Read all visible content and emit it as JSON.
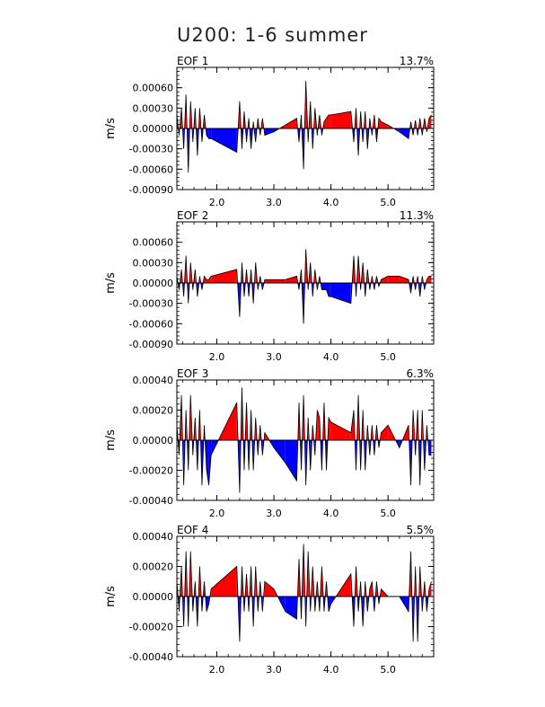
{
  "page_title": "U200: 1-6 summer",
  "colors": {
    "positive": "#ff0000",
    "negative": "#0000ff",
    "line": "#000000"
  },
  "chart_data": [
    {
      "type": "area",
      "title": "EOF 1",
      "variance": "13.7%",
      "ylabel": "m/s",
      "ylim": [
        -0.0009,
        0.0009
      ],
      "yticks": [
        0.0006,
        0.0003,
        0.0,
        -0.0003,
        -0.0006,
        -0.0009
      ],
      "ytick_labels": [
        "0.00060",
        "0.00030",
        "0.00000",
        "-0.00030",
        "-0.00060",
        "-0.00090"
      ],
      "xlim": [
        1.3,
        5.8
      ],
      "xticks": [
        2.0,
        3.0,
        4.0,
        5.0
      ],
      "xtick_labels": [
        "2.0",
        "3.0",
        "4.0",
        "5.0"
      ],
      "x": [
        1.3,
        1.34,
        1.38,
        1.42,
        1.46,
        1.5,
        1.54,
        1.58,
        1.62,
        1.66,
        1.7,
        1.74,
        1.78,
        1.82,
        1.86,
        1.9,
        2.35,
        2.4,
        2.44,
        2.48,
        2.52,
        2.56,
        2.6,
        2.64,
        2.68,
        2.72,
        2.76,
        2.8,
        2.84,
        3.0,
        3.2,
        3.4,
        3.44,
        3.48,
        3.52,
        3.56,
        3.6,
        3.64,
        3.68,
        3.72,
        3.76,
        3.8,
        3.84,
        3.88,
        3.92,
        3.96,
        4.0,
        4.35,
        4.4,
        4.44,
        4.48,
        4.52,
        4.56,
        4.6,
        4.64,
        4.68,
        4.72,
        4.76,
        4.8,
        4.84,
        4.88,
        5.0,
        5.2,
        5.36,
        5.4,
        5.44,
        5.48,
        5.52,
        5.56,
        5.6,
        5.64,
        5.68,
        5.72,
        5.76
      ],
      "values": [
        0.0002,
        -0.0001,
        0.0003,
        -0.0003,
        0.0005,
        -0.00065,
        0.0004,
        -0.0002,
        0.0003,
        -0.0004,
        0.0003,
        -0.0002,
        0.0002,
        -0.0001,
        -0.00015,
        -0.00015,
        -0.00035,
        0.0004,
        -0.0003,
        0.00025,
        -0.0002,
        0.00015,
        -0.0003,
        0.0001,
        -0.0002,
        0.00015,
        -0.0001,
        0.00015,
        -0.0001,
        -5e-05,
        5e-05,
        0.00015,
        -0.0002,
        0.0002,
        -0.0006,
        0.0007,
        -0.0002,
        0.0004,
        -0.0003,
        0.0003,
        -0.0001,
        0.0002,
        -0.0001,
        0.0001,
        0.00015,
        0.0002,
        0.0002,
        0.00025,
        -0.0002,
        0.0003,
        -0.0004,
        0.00025,
        -0.0002,
        0.00025,
        -0.0003,
        0.00015,
        -0.0001,
        0.0002,
        -0.0002,
        0.00015,
        0.0001,
        5e-05,
        -5e-05,
        -0.00015,
        0.0001,
        -0.0001,
        0.00012,
        -0.0001,
        0.00015,
        -0.0001,
        0.00015,
        -5e-05,
        0.00015,
        0.0002
      ]
    },
    {
      "type": "area",
      "title": "EOF 2",
      "variance": "11.3%",
      "ylabel": "m/s",
      "ylim": [
        -0.0009,
        0.0009
      ],
      "yticks": [
        0.0006,
        0.0003,
        0.0,
        -0.0003,
        -0.0006,
        -0.0009
      ],
      "ytick_labels": [
        "0.00060",
        "0.00030",
        "0.00000",
        "-0.00030",
        "-0.00060",
        "-0.00090"
      ],
      "xlim": [
        1.3,
        5.8
      ],
      "xticks": [
        2.0,
        3.0,
        4.0,
        5.0
      ],
      "xtick_labels": [
        "2.0",
        "3.0",
        "4.0",
        "5.0"
      ],
      "x": [
        1.3,
        1.34,
        1.38,
        1.42,
        1.46,
        1.5,
        1.54,
        1.58,
        1.62,
        1.66,
        1.7,
        1.74,
        1.78,
        1.82,
        1.86,
        1.9,
        2.35,
        2.4,
        2.44,
        2.48,
        2.52,
        2.56,
        2.6,
        2.64,
        2.68,
        2.72,
        2.76,
        2.8,
        2.84,
        3.0,
        3.2,
        3.4,
        3.44,
        3.48,
        3.52,
        3.56,
        3.6,
        3.64,
        3.68,
        3.72,
        3.76,
        3.8,
        3.84,
        3.88,
        3.92,
        3.96,
        4.0,
        4.35,
        4.4,
        4.44,
        4.48,
        4.52,
        4.56,
        4.6,
        4.64,
        4.68,
        4.72,
        4.76,
        4.8,
        4.84,
        4.88,
        5.0,
        5.2,
        5.36,
        5.4,
        5.44,
        5.48,
        5.52,
        5.56,
        5.6,
        5.64,
        5.68,
        5.72,
        5.76
      ],
      "values": [
        0.0001,
        -0.0001,
        0.0002,
        -0.0002,
        0.0004,
        -0.0003,
        0.0003,
        -0.0001,
        0.0002,
        -0.0002,
        0.0001,
        -0.0001,
        0.0001,
        5e-05,
        5e-05,
        0.0001,
        0.0002,
        -0.0005,
        0.0003,
        -0.0002,
        0.0002,
        -0.0002,
        0.0002,
        -0.0003,
        0.0003,
        -0.0001,
        0.0001,
        -0.0001,
        5e-05,
        5e-05,
        5e-05,
        0.0001,
        -0.0001,
        0.0002,
        -0.0006,
        0.0005,
        -0.0001,
        0.0003,
        -0.0002,
        0.0002,
        -0.0001,
        0.0001,
        -0.0001,
        -0.0001,
        -0.0001,
        -0.0002,
        -0.0002,
        -0.0003,
        0.0004,
        -0.0002,
        0.0004,
        -0.0001,
        0.0003,
        -0.0002,
        0.0002,
        -0.0001,
        0.0001,
        -0.0001,
        0.0001,
        -5e-05,
        5e-05,
        0.0001,
        0.0001,
        5e-05,
        -0.00015,
        0.0001,
        -0.0001,
        0.0001,
        -0.0002,
        0.0001,
        -0.0001,
        5e-05,
        0.0001,
        0.0001
      ]
    },
    {
      "type": "area",
      "title": "EOF 3",
      "variance": "6.3%",
      "ylabel": "m/s",
      "ylim": [
        -0.0004,
        0.0004
      ],
      "yticks": [
        0.0004,
        0.0002,
        0.0,
        -0.0002,
        -0.0004
      ],
      "ytick_labels": [
        "0.00040",
        "0.00020",
        "0.00000",
        "-0.00020",
        "-0.00040"
      ],
      "xlim": [
        1.3,
        5.8
      ],
      "xticks": [
        2.0,
        3.0,
        4.0,
        5.0
      ],
      "xtick_labels": [
        "2.0",
        "3.0",
        "4.0",
        "5.0"
      ],
      "x": [
        1.3,
        1.34,
        1.38,
        1.42,
        1.46,
        1.5,
        1.54,
        1.58,
        1.62,
        1.66,
        1.7,
        1.74,
        1.78,
        1.82,
        1.86,
        1.9,
        2.35,
        2.4,
        2.44,
        2.48,
        2.52,
        2.56,
        2.6,
        2.64,
        2.68,
        2.72,
        2.76,
        2.8,
        2.84,
        3.0,
        3.2,
        3.4,
        3.44,
        3.48,
        3.52,
        3.56,
        3.6,
        3.64,
        3.68,
        3.72,
        3.76,
        3.8,
        3.84,
        3.88,
        3.92,
        3.96,
        4.0,
        4.35,
        4.4,
        4.44,
        4.48,
        4.52,
        4.56,
        4.6,
        4.64,
        4.68,
        4.72,
        4.76,
        4.8,
        4.84,
        4.88,
        5.0,
        5.2,
        5.36,
        5.4,
        5.44,
        5.48,
        5.52,
        5.56,
        5.6,
        5.64,
        5.68,
        5.72,
        5.76
      ],
      "values": [
        0.0001,
        -0.0001,
        0.0003,
        -0.0003,
        0.0002,
        -0.0002,
        0.0003,
        -0.0001,
        0.00015,
        -0.0002,
        0.0002,
        -0.0003,
        0.0001,
        -0.0002,
        -0.0003,
        -0.0001,
        0.00025,
        -0.00035,
        0.00035,
        -0.0002,
        0.00025,
        -0.0002,
        0.0002,
        -0.0002,
        0.00015,
        -0.0001,
        0.0001,
        -0.0001,
        5e-05,
        -5e-05,
        -0.00015,
        -0.00027,
        0.00025,
        -0.0002,
        0.0003,
        -0.0003,
        0.00015,
        -0.0002,
        0.0001,
        -0.0001,
        0.0002,
        0.00015,
        -0.0002,
        0.00025,
        -0.0002,
        0.00015,
        0.00012,
        5e-05,
        0.0002,
        -0.0002,
        0.0003,
        -0.0002,
        0.0002,
        -0.0002,
        0.0001,
        -0.0001,
        0.0001,
        -0.0001,
        0.0001,
        -5e-05,
        5e-05,
        0.0001,
        -5e-05,
        0.0001,
        -0.0003,
        0.0002,
        -0.0001,
        0.0002,
        -0.0003,
        0.0002,
        -0.0002,
        0.0001,
        -0.0001,
        -0.0001
      ]
    },
    {
      "type": "area",
      "title": "EOF 4",
      "variance": "5.5%",
      "ylabel": "m/s",
      "ylim": [
        -0.0004,
        0.0004
      ],
      "yticks": [
        0.0004,
        0.0002,
        0.0,
        -0.0002,
        -0.0004
      ],
      "ytick_labels": [
        "0.00040",
        "0.00020",
        "0.00000",
        "-0.00020",
        "-0.00040"
      ],
      "xlim": [
        1.3,
        5.8
      ],
      "xticks": [
        2.0,
        3.0,
        4.0,
        5.0
      ],
      "xtick_labels": [
        "2.0",
        "3.0",
        "4.0",
        "5.0"
      ],
      "x": [
        1.3,
        1.34,
        1.38,
        1.42,
        1.46,
        1.5,
        1.54,
        1.58,
        1.62,
        1.66,
        1.7,
        1.74,
        1.78,
        1.82,
        1.86,
        1.9,
        2.35,
        2.4,
        2.44,
        2.48,
        2.52,
        2.56,
        2.6,
        2.64,
        2.68,
        2.72,
        2.76,
        2.8,
        2.84,
        3.0,
        3.2,
        3.4,
        3.44,
        3.48,
        3.52,
        3.56,
        3.6,
        3.64,
        3.68,
        3.72,
        3.76,
        3.8,
        3.84,
        3.88,
        3.92,
        3.96,
        4.0,
        4.35,
        4.4,
        4.44,
        4.48,
        4.52,
        4.56,
        4.6,
        4.64,
        4.68,
        4.72,
        4.76,
        4.8,
        4.84,
        4.88,
        5.0,
        5.2,
        5.36,
        5.4,
        5.44,
        5.48,
        5.52,
        5.56,
        5.6,
        5.64,
        5.68,
        5.72,
        5.76
      ],
      "values": [
        0.0001,
        -0.0001,
        0.0002,
        -0.0002,
        0.0003,
        -0.0002,
        0.0003,
        -0.0001,
        0.0001,
        -0.0002,
        0.0002,
        -0.0001,
        0.0001,
        -0.0001,
        -5e-05,
        5e-05,
        0.0002,
        -0.0003,
        0.0002,
        -0.0001,
        0.00015,
        -0.0001,
        0.0002,
        -0.0002,
        0.0002,
        -0.0001,
        0.0001,
        -0.0001,
        0.0001,
        5e-05,
        -0.0001,
        -0.00015,
        0.00025,
        -0.00015,
        0.00035,
        -0.0002,
        0.0003,
        -0.0001,
        0.0002,
        -0.0001,
        0.0001,
        -0.0001,
        0.0002,
        -0.0001,
        0.0001,
        -0.0001,
        -5e-05,
        0.00015,
        -0.0002,
        0.0002,
        -0.0001,
        0.0001,
        -0.0002,
        0.0001,
        -0.0001,
        5e-05,
        0.0001,
        -0.0001,
        0.0001,
        -5e-05,
        5e-05,
        0.0,
        0.0,
        -0.0001,
        0.0003,
        -0.0003,
        0.0002,
        -0.0003,
        0.0002,
        -0.0001,
        0.0001,
        -0.0001,
        5e-05,
        0.0001
      ]
    }
  ]
}
